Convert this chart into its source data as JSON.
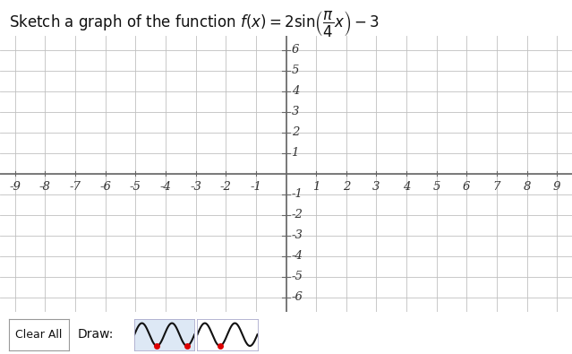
{
  "xlim": [
    -9.5,
    9.5
  ],
  "ylim": [
    -6.7,
    6.7
  ],
  "xticks": [
    -9,
    -8,
    -7,
    -6,
    -5,
    -4,
    -3,
    -2,
    -1,
    1,
    2,
    3,
    4,
    5,
    6,
    7,
    8,
    9
  ],
  "yticks": [
    -6,
    -5,
    -4,
    -3,
    -2,
    -1,
    1,
    2,
    3,
    4,
    5,
    6
  ],
  "grid_color": "#c0c0c0",
  "grid_linewidth": 0.6,
  "axis_color": "#666666",
  "axis_linewidth": 1.2,
  "tick_label_fontsize": 9.5,
  "tick_label_color": "#333333",
  "background_color": "#ffffff",
  "title_text": "Sketch a graph of the function ",
  "title_fontsize": 12,
  "wave_color_black": "#111111",
  "wave_color_red": "#dd0000",
  "wave_bg": "#dde8f5"
}
